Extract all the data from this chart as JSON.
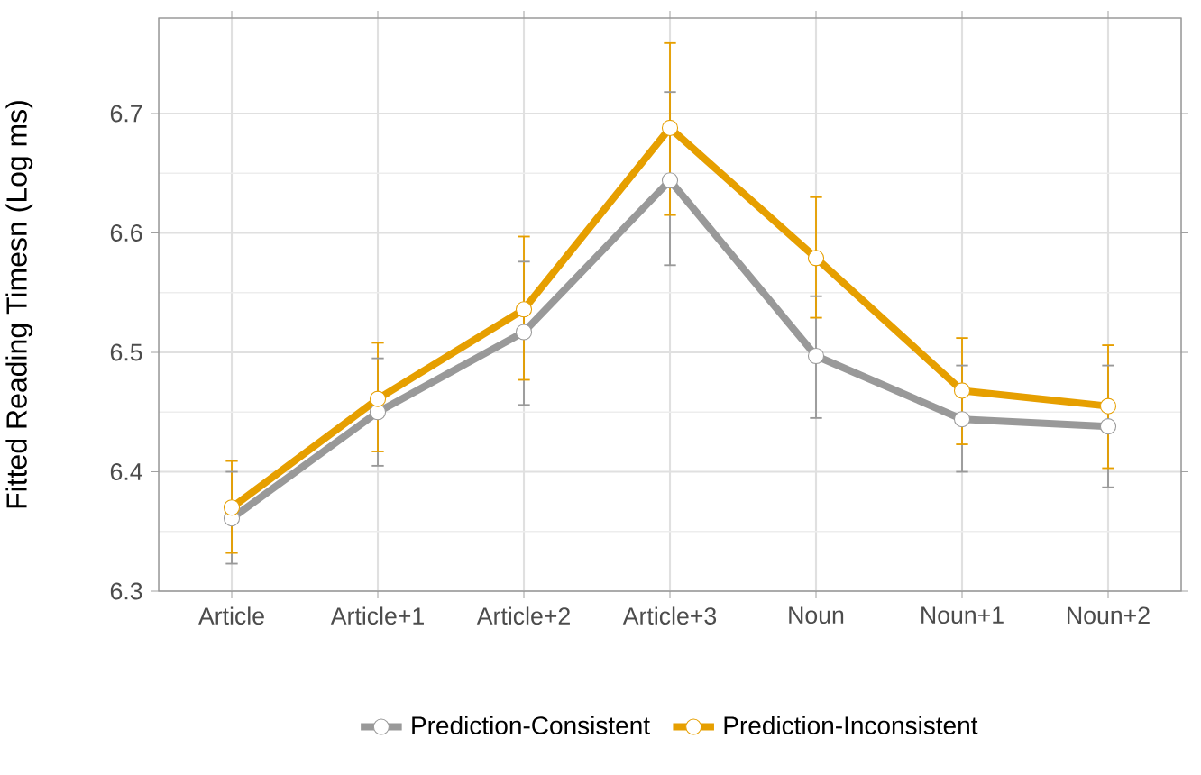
{
  "chart_data": {
    "type": "line",
    "ylabel": "Fitted Reading Timesn (Log ms)",
    "categories": [
      "Article",
      "Article+1",
      "Article+2",
      "Article+3",
      "Noun",
      "Noun+1",
      "Noun+2"
    ],
    "series": [
      {
        "name": "Prediction-Consistent",
        "color": "#999999",
        "values": [
          6.361,
          6.45,
          6.517,
          6.644,
          6.497,
          6.444,
          6.438
        ],
        "errors": [
          [
            6.323,
            6.4
          ],
          [
            6.405,
            6.495
          ],
          [
            6.456,
            6.576
          ],
          [
            6.573,
            6.718
          ],
          [
            6.445,
            6.547
          ],
          [
            6.4,
            6.489
          ],
          [
            6.387,
            6.489
          ]
        ]
      },
      {
        "name": "Prediction-Inconsistent",
        "color": "#e69f00",
        "values": [
          6.37,
          6.461,
          6.536,
          6.688,
          6.579,
          6.468,
          6.455
        ],
        "errors": [
          [
            6.332,
            6.409
          ],
          [
            6.417,
            6.508
          ],
          [
            6.477,
            6.597
          ],
          [
            6.615,
            6.759
          ],
          [
            6.529,
            6.63
          ],
          [
            6.423,
            6.512
          ],
          [
            6.403,
            6.506
          ]
        ]
      }
    ],
    "ylim": [
      6.3,
      6.78
    ],
    "yticks": [
      6.3,
      6.4,
      6.5,
      6.6,
      6.7
    ],
    "grid": true,
    "legend": "bottom",
    "marker": "circle",
    "line_style": "solid"
  }
}
